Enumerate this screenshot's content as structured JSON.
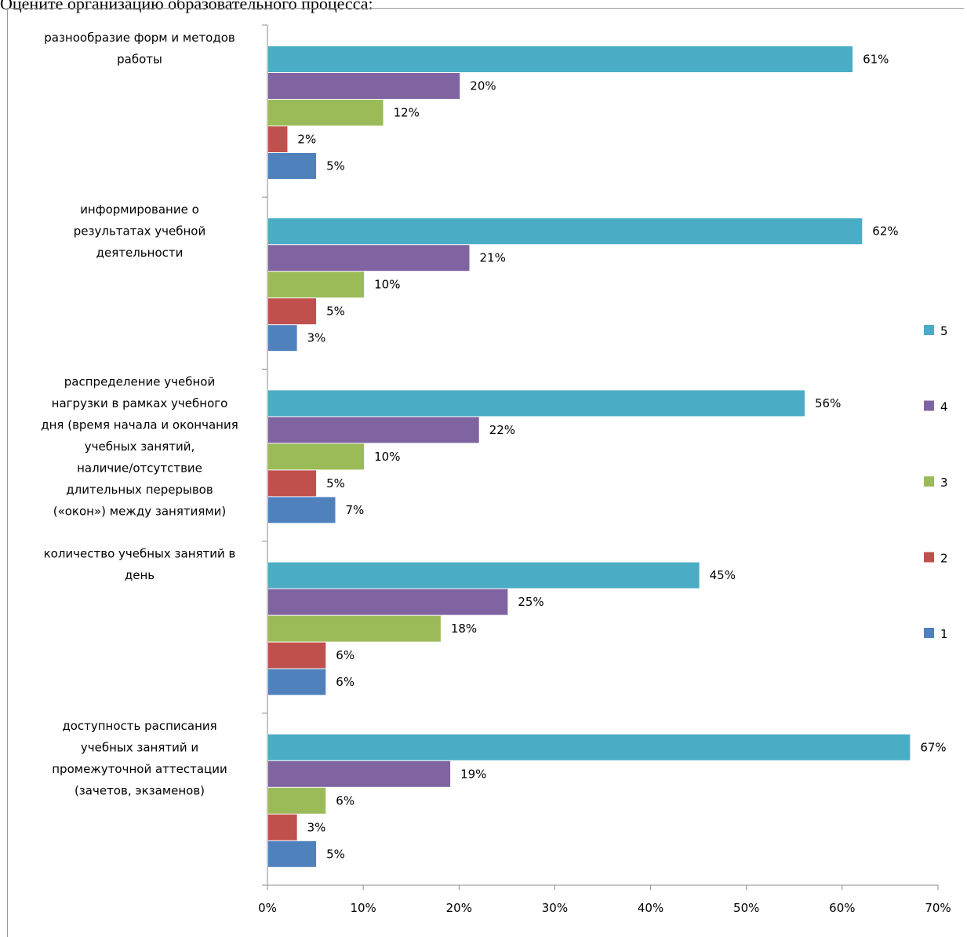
{
  "page_title": "Оцените организацию образовательного процесса:",
  "chart_data": {
    "type": "bar",
    "orientation": "horizontal",
    "xlim": [
      0,
      70
    ],
    "x_ticks": [
      "0%",
      "10%",
      "20%",
      "30%",
      "40%",
      "50%",
      "60%",
      "70%"
    ],
    "legend_position": "right",
    "categories": [
      {
        "lines": [
          "разнообразие форм и методов",
          "работы"
        ],
        "values": {
          "5": 61,
          "4": 20,
          "3": 12,
          "2": 2,
          "1": 5
        },
        "labels": {
          "5": "61%",
          "4": "20%",
          "3": "12%",
          "2": "2%",
          "1": "5%"
        }
      },
      {
        "lines": [
          "информирование о",
          "результатах учебной",
          "деятельности"
        ],
        "values": {
          "5": 62,
          "4": 21,
          "3": 10,
          "2": 5,
          "1": 3
        },
        "labels": {
          "5": "62%",
          "4": "21%",
          "3": "10%",
          "2": "5%",
          "1": "3%"
        }
      },
      {
        "lines": [
          "распределение учебной",
          "нагрузки в рамках учебного",
          "дня (время начала и окончания",
          "учебных занятий,",
          "наличие/отсутствие",
          "длительных перерывов",
          "(«окон») между занятиями)"
        ],
        "values": {
          "5": 56,
          "4": 22,
          "3": 10,
          "2": 5,
          "1": 7
        },
        "labels": {
          "5": "56%",
          "4": "22%",
          "3": "10%",
          "2": "5%",
          "1": "7%"
        }
      },
      {
        "lines": [
          "количество учебных занятий в",
          "день"
        ],
        "values": {
          "5": 45,
          "4": 25,
          "3": 18,
          "2": 6,
          "1": 6
        },
        "labels": {
          "5": "45%",
          "4": "25%",
          "3": "18%",
          "2": "6%",
          "1": "6%"
        }
      },
      {
        "lines": [
          "доступность расписания",
          "учебных занятий и",
          "промежуточной аттестации",
          "(зачетов, экзаменов)"
        ],
        "values": {
          "5": 67,
          "4": 19,
          "3": 6,
          "2": 3,
          "1": 5
        },
        "labels": {
          "5": "67%",
          "4": "19%",
          "3": "6%",
          "2": "3%",
          "1": "5%"
        }
      }
    ],
    "series": [
      {
        "name": "5",
        "color": "#4bacc6"
      },
      {
        "name": "4",
        "color": "#8064a2"
      },
      {
        "name": "3",
        "color": "#9bbb59"
      },
      {
        "name": "2",
        "color": "#c0504d"
      },
      {
        "name": "1",
        "color": "#4f81bd"
      }
    ]
  }
}
